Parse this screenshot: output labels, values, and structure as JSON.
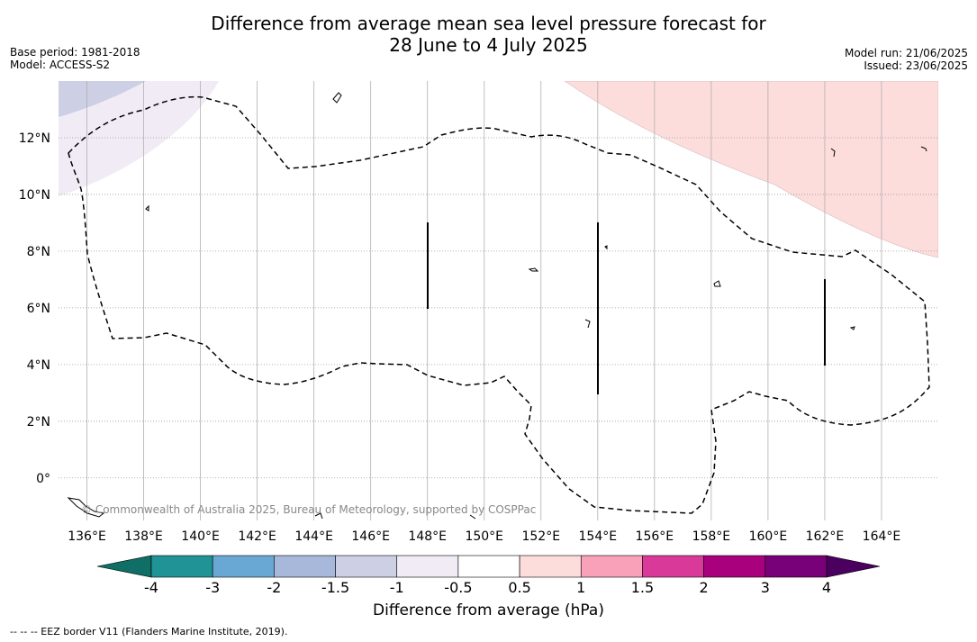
{
  "title_line1": "Difference from average mean sea level pressure forecast for",
  "title_line2": "28 June to 4 July 2025",
  "meta_left": [
    "Base period: 1981-2018",
    "Model: ACCESS-S2"
  ],
  "meta_right": [
    "Model run: 21/06/2025",
    "Issued: 23/06/2025"
  ],
  "map": {
    "lon_range": [
      135,
      166
    ],
    "lat_range": [
      -1.5,
      14
    ],
    "lon_ticks": [
      "136°E",
      "138°E",
      "140°E",
      "142°E",
      "144°E",
      "146°E",
      "148°E",
      "150°E",
      "152°E",
      "154°E",
      "156°E",
      "158°E",
      "160°E",
      "162°E",
      "164°E"
    ],
    "lat_ticks": [
      "12°N",
      "10°N",
      "8°N",
      "6°N",
      "4°N",
      "2°N",
      "0°"
    ],
    "gridlines": true,
    "copyright": "© Commonwealth of Australia 2025, Bureau of Meteorology, supported by COSPPac",
    "anomaly_regions": [
      {
        "name": "negative-anomaly-northwest",
        "level": "-1 to -0.5",
        "color": "#f0ebf4"
      },
      {
        "name": "negative-anomaly-northwest-core",
        "level": "-1.5 to -1",
        "color": "#cdd0e5"
      },
      {
        "name": "positive-anomaly-northeast",
        "level": "0.5 to 1",
        "color": "#fddcdc"
      }
    ]
  },
  "colorbar": {
    "boundaries": [
      "-4",
      "-3",
      "-2",
      "-1.5",
      "-1",
      "-0.5",
      "0.5",
      "1",
      "1.5",
      "2",
      "3",
      "4"
    ],
    "colors": [
      "#1f9395",
      "#69a8d4",
      "#a7b8db",
      "#cdd0e5",
      "#f0ebf4",
      "#ffffff",
      "#fddcdc",
      "#f9a1b8",
      "#d93a9a",
      "#a9007d",
      "#780078"
    ],
    "under_color": "#0f6e65",
    "over_color": "#4b0060",
    "label": "Difference from average (hPa)"
  },
  "footnote": "--  --  -- EEZ border V11 (Flanders Marine Institute, 2019)."
}
